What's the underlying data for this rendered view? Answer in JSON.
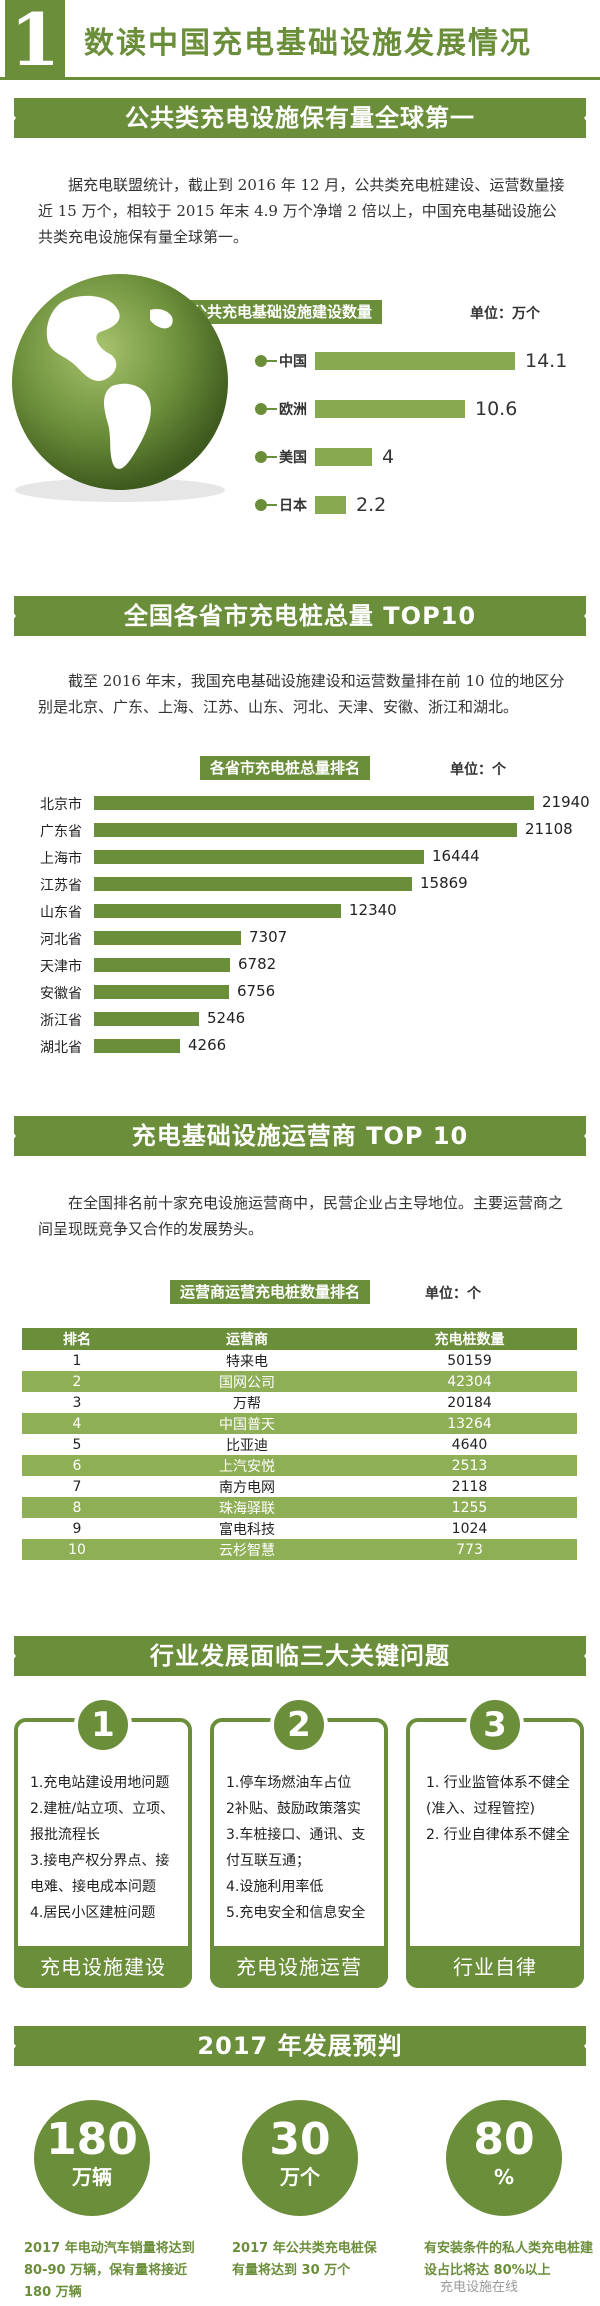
{
  "header": {
    "number": "1",
    "title": "数读中国充电基础设施发展情况"
  },
  "section1": {
    "title": "公共类充电设施保有量全球第一",
    "paragraph": "据充电联盟统计，截止到 2016 年 12 月，公共类充电桩建设、运营数量接近 15 万个，相较于 2015 年末 4.9 万个净增 2 倍以上，中国充电基础设施公共类充电设施保有量全球第一。",
    "chart_title": "全球主要国家公共充电基础设施建设数量",
    "unit": "单位：万个"
  },
  "section2": {
    "title": "全国各省市充电桩总量 TOP10",
    "paragraph": "截至 2016 年末，我国充电基础设施建设和运营数量排在前 10 位的地区分别是北京、广东、上海、江苏、山东、河北、天津、安徽、浙江和湖北。",
    "chart_title": "各省市充电桩总量排名",
    "unit": "单位：个"
  },
  "section3": {
    "title": "充电基础设施运营商 TOP 10",
    "paragraph": "在全国排名前十家充电设施运营商中，民营企业占主导地位。主要运营商之间呈现既竞争又合作的发展势头。",
    "chart_title": "运营商运营充电桩数量排名",
    "unit": "单位：个",
    "headers": [
      "排名",
      "运营商",
      "充电桩数量"
    ]
  },
  "section4": {
    "title": "行业发展面临三大关键问题",
    "cards": [
      {
        "num": "1",
        "lines": [
          "1.充电站建设用地问题",
          "2.建桩/站立项、立项、报批流程长",
          "3.接电产权分界点、接电难、接电成本问题",
          "4.居民小区建桩问题"
        ],
        "footer": "充电设施建设"
      },
      {
        "num": "2",
        "lines": [
          "1.停车场燃油车占位",
          "2补贴、鼓励政策落实",
          "3.车桩接口、通讯、支付互联互通；",
          "4.设施利用率低",
          "5.充电安全和信息安全"
        ],
        "footer": "充电设施运营"
      },
      {
        "num": "3",
        "lines": [
          "1. 行业监管体系不健全",
          "(准入、过程管控)",
          "2. 行业自律体系不健全"
        ],
        "footer": "行业自律"
      }
    ]
  },
  "section5": {
    "title": "2017 年发展预判",
    "items": [
      {
        "big": "180",
        "small": "万辆",
        "text": "2017 年电动汽车销量将达到 80-90 万辆，保有量将接近 180 万辆"
      },
      {
        "big": "30",
        "small": "万个",
        "text": "2017 年公共类充电桩保有量将达到 30 万个"
      },
      {
        "big": "80",
        "small": "%",
        "text": "有安装条件的私人类充电桩建设占比将达 80%以上"
      }
    ],
    "watermark": "充电设施在线"
  },
  "chart_data": [
    {
      "type": "bar",
      "title": "全球主要国家公共充电基础设施建设数量",
      "ylabel": "单位：万个",
      "categories": [
        "中国",
        "欧洲",
        "美国",
        "日本"
      ],
      "values": [
        14.1,
        10.6,
        4,
        2.2
      ]
    },
    {
      "type": "bar",
      "title": "各省市充电桩总量排名",
      "ylabel": "单位：个",
      "categories": [
        "北京市",
        "广东省",
        "上海市",
        "江苏省",
        "山东省",
        "河北省",
        "天津市",
        "安徽省",
        "浙江省",
        "湖北省"
      ],
      "values": [
        21940,
        21108,
        16444,
        15869,
        12340,
        7307,
        6782,
        6756,
        5246,
        4266
      ]
    },
    {
      "type": "table",
      "title": "运营商运营充电桩数量排名",
      "columns": [
        "排名",
        "运营商",
        "充电桩数量"
      ],
      "rows": [
        [
          "1",
          "特来电",
          "50159"
        ],
        [
          "2",
          "国网公司",
          "42304"
        ],
        [
          "3",
          "万帮",
          "20184"
        ],
        [
          "4",
          "中国普天",
          "13264"
        ],
        [
          "5",
          "比亚迪",
          "4640"
        ],
        [
          "6",
          "上汽安悦",
          "2513"
        ],
        [
          "7",
          "南方电网",
          "2118"
        ],
        [
          "8",
          "珠海驿联",
          "1255"
        ],
        [
          "9",
          "富电科技",
          "1024"
        ],
        [
          "10",
          "云杉智慧",
          "773"
        ]
      ]
    }
  ]
}
